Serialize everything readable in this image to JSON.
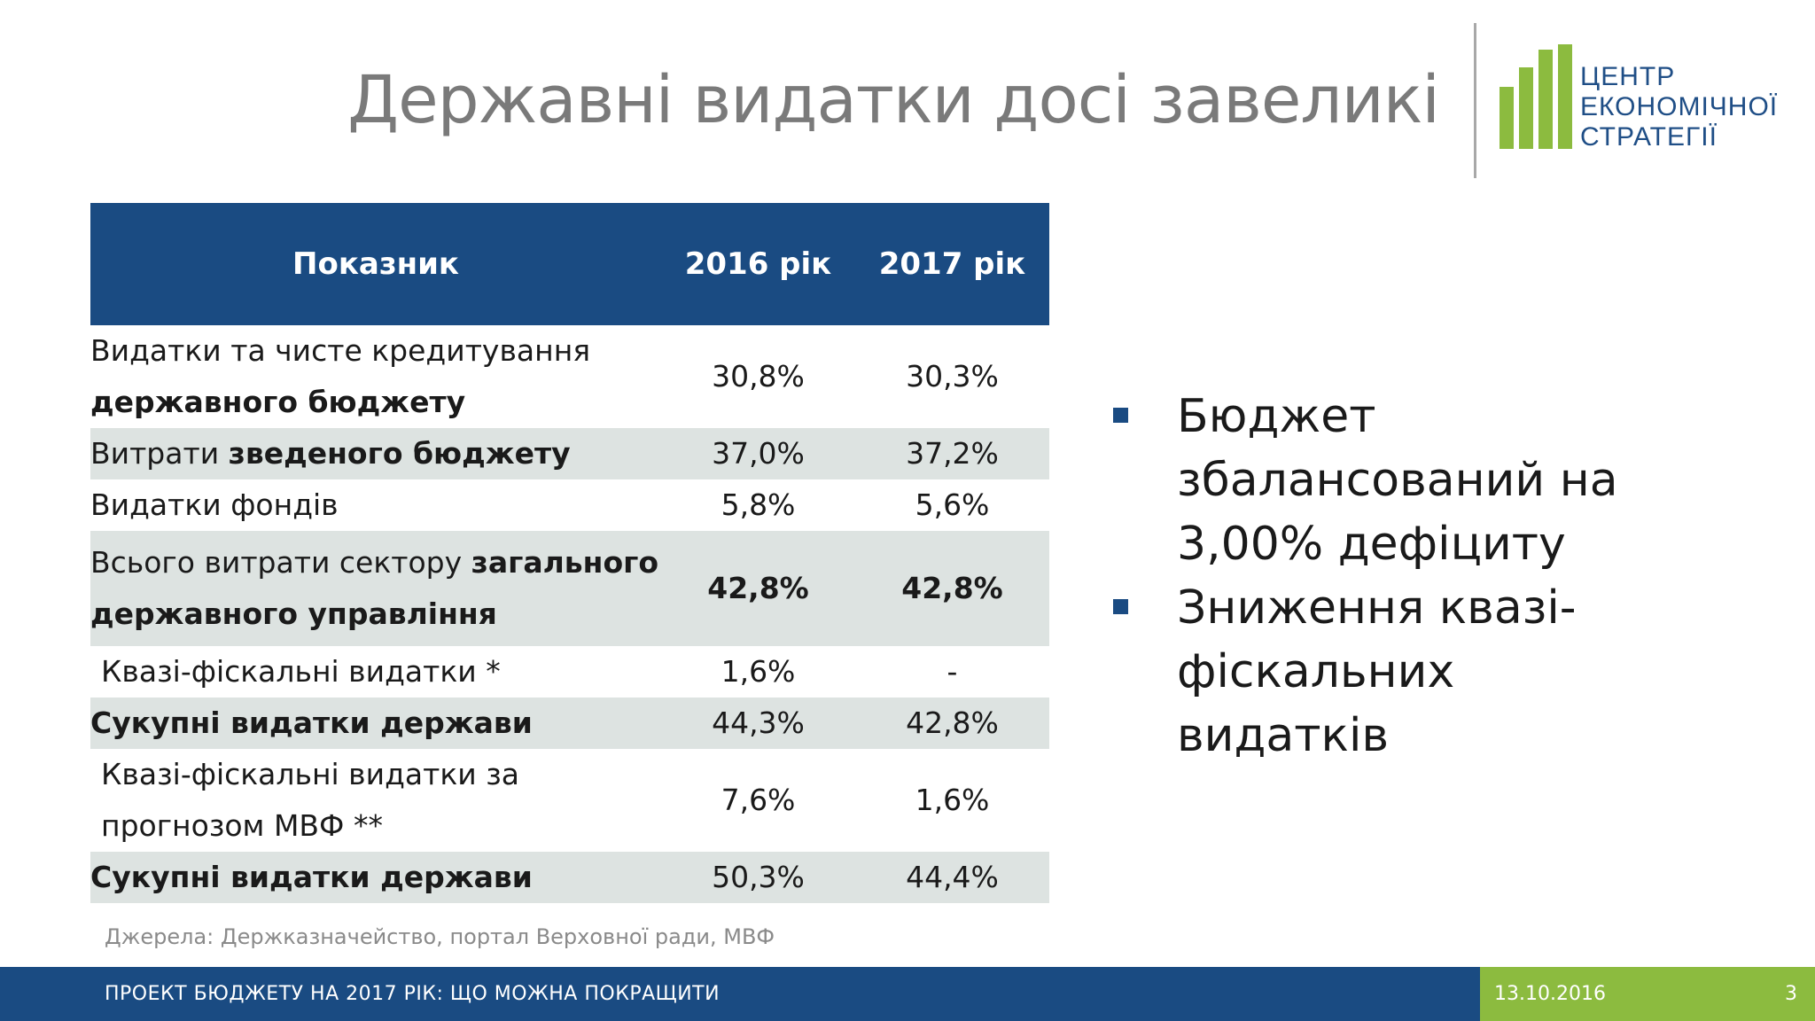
{
  "slide": {
    "title": "Державні видатки досі завеликі",
    "logo": {
      "line1": "ЦЕНТР",
      "line2": "ЕКОНОМІЧНОЇ",
      "line3": "СТРАТЕГІЇ",
      "bar_color": "#8cbb3f",
      "text_color": "#1f4e86"
    }
  },
  "table": {
    "headers": [
      "Показник",
      "2016 рік",
      "2017 рік"
    ],
    "rows": [
      {
        "label_plain": "Видатки та чисте кредитування ",
        "label_bold": "державного бюджету",
        "v2016": "30,8%",
        "v2017": "30,3%"
      },
      {
        "label_plain": "Витрати ",
        "label_bold": "зведеного бюджету",
        "v2016": "37,0%",
        "v2017": "37,2%"
      },
      {
        "label_plain": "Видатки фондів",
        "label_bold": "",
        "v2016": "5,8%",
        "v2017": "5,6%"
      },
      {
        "label_plain": "Всього витрати  сектору ",
        "label_bold": "загального державного управління",
        "v2016": "42,8%",
        "v2017": "42,8%"
      },
      {
        "label_plain": "Квазі-фіскальні видатки *",
        "label_bold": "",
        "v2016": "1,6%",
        "v2017": "-"
      },
      {
        "label_plain": "",
        "label_bold": "Сукупні видатки держави",
        "v2016": "44,3%",
        "v2017": "42,8%"
      },
      {
        "label_plain": "Квазі-фіскальні видатки за прогнозом МВФ **",
        "label_bold": "",
        "v2016": "7,6%",
        "v2017": "1,6%"
      },
      {
        "label_plain": "",
        "label_bold": "Сукупні видатки держави",
        "v2016": "50,3%",
        "v2017": "44,4%"
      }
    ],
    "source": "Джерела: Держказначейство, портал Верховної ради, МВФ"
  },
  "bullets": [
    "Бюджет збалансований на 3,00% дефіциту",
    "Зниження квазі-фіскальних видатків"
  ],
  "footer": {
    "title": "ПРОЕКТ БЮДЖЕТУ НА 2017 РІК: ЩО МОЖНА ПОКРАЩИТИ",
    "date": "13.10.2016",
    "page": "3"
  },
  "colors": {
    "header_blue": "#1a4b82",
    "row_shade": "#dde3e1",
    "accent_green": "#8cbb3f"
  }
}
